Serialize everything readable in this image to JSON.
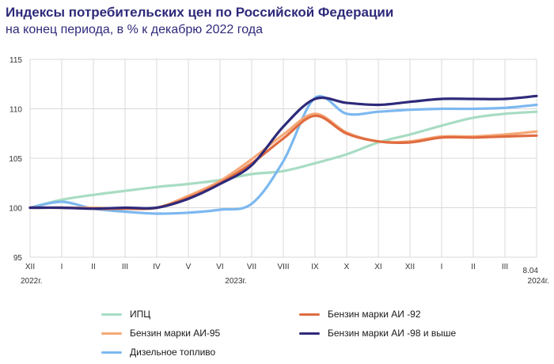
{
  "title": "Индексы потребительских цен по Российской Федерации",
  "subtitle": "на конец периода, в % к декабрю 2022 года",
  "chart_data": {
    "type": "line",
    "title": "Индексы потребительских цен по Российской Федерации",
    "subtitle": "на конец периода, в % к декабрю 2022 года",
    "categories": [
      "XII",
      "I",
      "II",
      "III",
      "IV",
      "V",
      "VI",
      "VII",
      "VIII",
      "IX",
      "X",
      "XI",
      "XII",
      "I",
      "II",
      "III",
      "8.04"
    ],
    "year_labels": [
      "2022г.",
      "2023г.",
      "2024г."
    ],
    "ylim": [
      95,
      115
    ],
    "yticks": [
      95,
      100,
      105,
      110,
      115
    ],
    "grid": "horizontal",
    "series": [
      {
        "name": "ИПЦ",
        "color": "#a8dcc2",
        "values": [
          100.0,
          100.8,
          101.3,
          101.7,
          102.1,
          102.4,
          102.8,
          103.4,
          103.7,
          104.5,
          105.4,
          106.6,
          107.4,
          108.3,
          109.1,
          109.5,
          109.7
        ]
      },
      {
        "name": "Бензин марки АИ -92",
        "color": "#e06c40",
        "values": [
          100.0,
          100.0,
          99.9,
          99.9,
          100.0,
          101.0,
          102.5,
          104.5,
          107.0,
          109.3,
          107.5,
          106.7,
          106.6,
          107.1,
          107.1,
          107.2,
          107.3
        ]
      },
      {
        "name": "Бензин марки АИ-95",
        "color": "#f5a878",
        "values": [
          100.0,
          100.0,
          100.0,
          99.9,
          100.0,
          101.2,
          102.7,
          104.9,
          107.4,
          109.5,
          107.6,
          106.7,
          106.7,
          107.2,
          107.2,
          107.4,
          107.7
        ]
      },
      {
        "name": "Бензин марки АИ -98 и выше",
        "color": "#2e2a7a",
        "values": [
          100.0,
          100.0,
          99.9,
          100.0,
          100.0,
          100.9,
          102.4,
          104.3,
          108.2,
          111.0,
          110.6,
          110.4,
          110.7,
          111.0,
          111.0,
          111.0,
          111.3
        ]
      },
      {
        "name": "Дизельное топливо",
        "color": "#7cb8f0",
        "values": [
          100.0,
          100.6,
          99.9,
          99.6,
          99.4,
          99.5,
          99.8,
          100.4,
          104.7,
          111.1,
          109.5,
          109.7,
          109.9,
          110.0,
          110.0,
          110.1,
          110.4
        ]
      }
    ],
    "legend": [
      {
        "label": "ИПЦ",
        "color": "#a8dcc2"
      },
      {
        "label": "Бензин марки АИ -92",
        "color": "#e06c40"
      },
      {
        "label": "Бензин марки АИ-95",
        "color": "#f5a878"
      },
      {
        "label": "Бензин марки АИ -98 и выше",
        "color": "#2e2a7a"
      },
      {
        "label": "Дизельное топливо",
        "color": "#7cb8f0"
      }
    ]
  }
}
